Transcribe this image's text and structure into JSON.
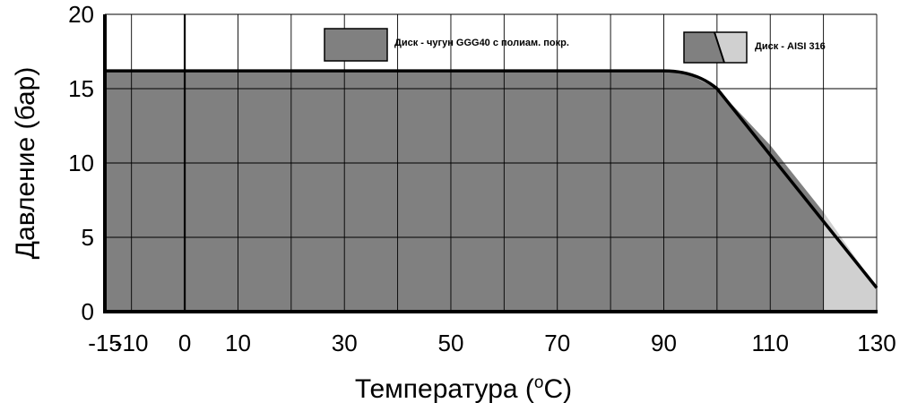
{
  "chart_data": {
    "type": "area",
    "title": "",
    "xlabel": "Температура (",
    "xlabel_super": "o",
    "xlabel_tail": "C)",
    "ylabel": "Давление (бар)",
    "xlim": [
      -15,
      130
    ],
    "ylim": [
      0,
      20
    ],
    "x_ticks": [
      -15,
      -10,
      0,
      10,
      30,
      50,
      70,
      90,
      110,
      130
    ],
    "x_tick_labels": [
      "-15",
      "-10",
      "0",
      "10",
      "30",
      "50",
      "70",
      "90",
      "110",
      "130"
    ],
    "y_ticks": [
      0,
      5,
      10,
      15,
      20
    ],
    "y_tick_labels": [
      "0",
      "5",
      "10",
      "15",
      "20"
    ],
    "x_grid": [
      -15,
      -10,
      0,
      10,
      20,
      30,
      40,
      50,
      60,
      70,
      80,
      90,
      100,
      110,
      120,
      130
    ],
    "y_grid": [
      0,
      5,
      10,
      15,
      20
    ],
    "grid": true,
    "legend_position": "top",
    "series": [
      {
        "name": "Диск - чугун GGG40 с полиам. покр.",
        "color": "#808080",
        "points": [
          [
            -15,
            16.2
          ],
          [
            90,
            16.2
          ],
          [
            95,
            15.9
          ],
          [
            100,
            15.0
          ],
          [
            110,
            11.2
          ],
          [
            120,
            6.7
          ]
        ]
      },
      {
        "name": "Диск - AISI 316",
        "color": "#d0d0d0",
        "points": [
          [
            120,
            6.7
          ],
          [
            130,
            1.6
          ]
        ]
      }
    ],
    "boundary": [
      [
        -15,
        16.2
      ],
      [
        90,
        16.2
      ],
      [
        95,
        15.9
      ],
      [
        100,
        15.0
      ],
      [
        110,
        11.2
      ],
      [
        120,
        6.7
      ],
      [
        130,
        1.6
      ]
    ],
    "shade_split_x": 120
  }
}
